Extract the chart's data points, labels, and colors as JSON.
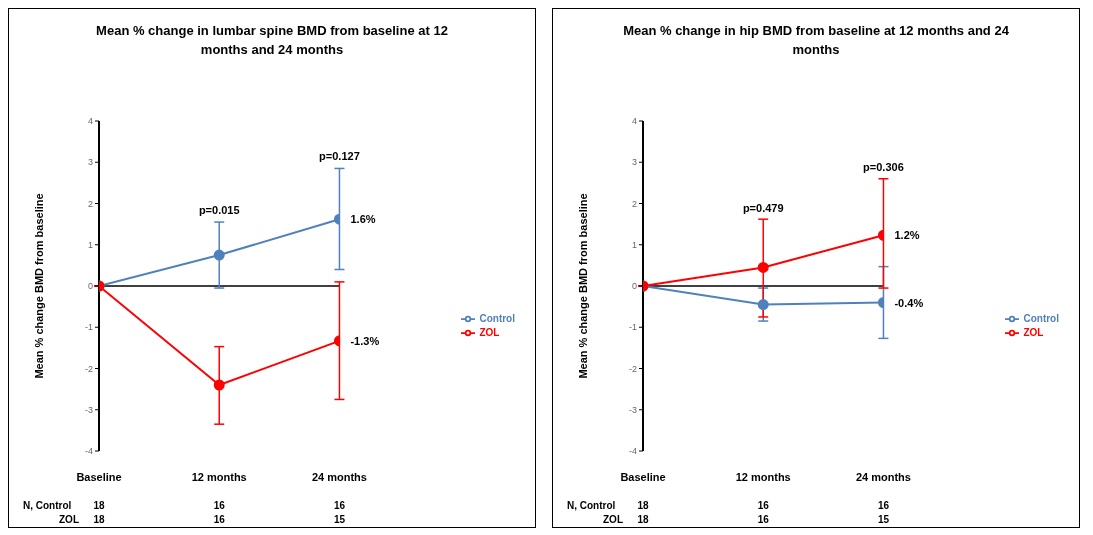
{
  "chart_data": [
    {
      "type": "line",
      "title": "Mean % change in lumbar spine BMD from baseline at 12 months and 24 months",
      "ylabel": "Mean % change BMD from baseline",
      "categories": [
        "Baseline",
        "12 months",
        "24 months"
      ],
      "ylim": [
        -4,
        4
      ],
      "yticks": [
        -4,
        -3,
        -2,
        -1,
        0,
        1,
        2,
        3,
        4
      ],
      "grid": false,
      "legend": "right",
      "marker": "circle",
      "series": [
        {
          "name": "Control",
          "color": "#4f81bd",
          "values": [
            0,
            0.75,
            1.62
          ],
          "errors": [
            null,
            [
              -0.05,
              1.55
            ],
            [
              0.4,
              2.85
            ]
          ],
          "value_labels": [
            null,
            null,
            "1.6%"
          ]
        },
        {
          "name": "ZOL",
          "color": "#ff0000",
          "values": [
            0,
            -2.4,
            -1.33
          ],
          "errors": [
            null,
            [
              -3.35,
              -1.47
            ],
            [
              -2.75,
              0.1
            ]
          ],
          "value_labels": [
            null,
            null,
            "-1.3%"
          ]
        }
      ],
      "ref_lines": [
        {
          "axis": "y",
          "value": 0,
          "color": "#000000"
        }
      ],
      "annotations": [
        {
          "text": "p=0.015",
          "x": "12 months",
          "y": 1.6
        },
        {
          "text": "p=0.127",
          "x": "24 months",
          "y": 2.9
        },
        "N, Control",
        "18",
        "16",
        "16",
        "ZOL",
        "18",
        "16",
        "15"
      ]
    },
    {
      "type": "line",
      "title": "Mean % change in hip BMD from baseline at 12 months and 24 months",
      "ylabel": "Mean % change BMD from baseline",
      "categories": [
        "Baseline",
        "12 months",
        "24 months"
      ],
      "ylim": [
        -4,
        4
      ],
      "yticks": [
        -4,
        -3,
        -2,
        -1,
        0,
        1,
        2,
        3,
        4
      ],
      "grid": false,
      "legend": "right",
      "marker": "circle",
      "series": [
        {
          "name": "Control",
          "color": "#4f81bd",
          "values": [
            0,
            -0.45,
            -0.4
          ],
          "errors": [
            null,
            [
              -0.85,
              -0.05
            ],
            [
              -1.27,
              0.47
            ]
          ],
          "value_labels": [
            null,
            null,
            "-0.4%"
          ]
        },
        {
          "name": "ZOL",
          "color": "#ff0000",
          "values": [
            0,
            0.45,
            1.23
          ],
          "errors": [
            null,
            [
              -0.75,
              1.62
            ],
            [
              -0.05,
              2.6
            ]
          ],
          "value_labels": [
            null,
            null,
            "1.2%"
          ]
        }
      ],
      "ref_lines": [
        {
          "axis": "y",
          "value": 0,
          "color": "#000000"
        }
      ],
      "annotations": [
        {
          "text": "p=0.479",
          "x": "12 months",
          "y": 1.65
        },
        {
          "text": "p=0.306",
          "x": "24 months",
          "y": 2.65
        },
        "N, Control",
        "18",
        "16",
        "16",
        "ZOL",
        "18",
        "16",
        "15"
      ]
    }
  ]
}
